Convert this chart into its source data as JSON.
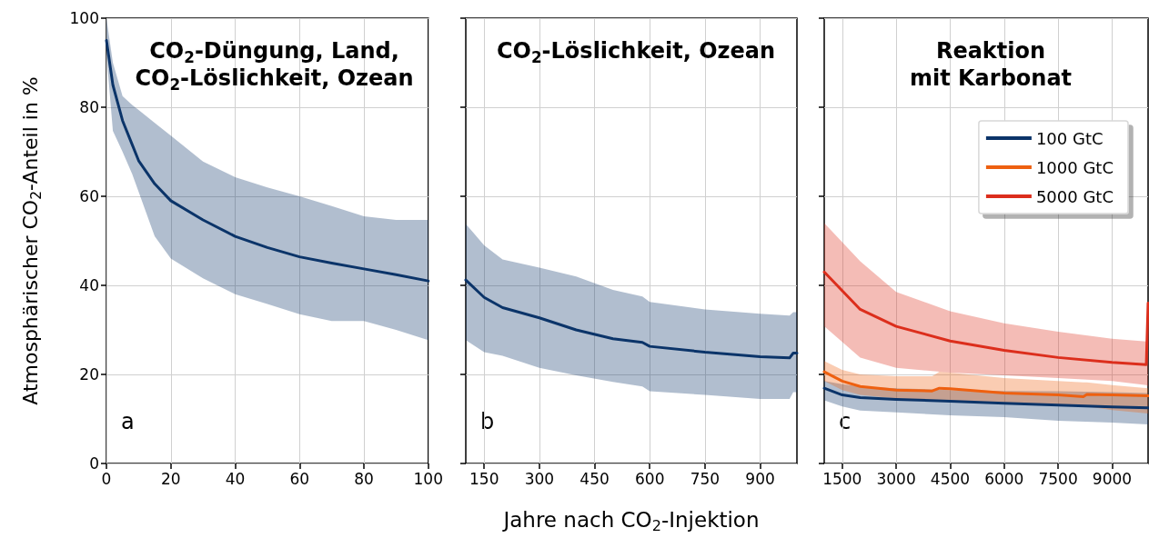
{
  "chart_data": [
    {
      "type": "line",
      "title": "CO$_{2}$-Düngung, Land,\nCO$_{2}$-Löslichkeit, Ozean",
      "ylabel": "Atmosphärischer CO$_{2}$-Anteil in %",
      "annotations": [
        "a"
      ],
      "xlim": [
        0,
        100
      ],
      "xticks": [
        0,
        20,
        40,
        60,
        80,
        100
      ],
      "ylim": [
        0,
        100
      ],
      "yticks": [
        0,
        20,
        40,
        60,
        80,
        100
      ],
      "grid": true,
      "series": [
        {
          "color": "#0b3469",
          "x": [
            0,
            2,
            5,
            8,
            10,
            15,
            20,
            30,
            40,
            50,
            60,
            70,
            80,
            90,
            100
          ],
          "values": [
            95,
            85,
            77,
            71.6,
            68,
            62.8,
            59,
            54.7,
            51,
            48.5,
            46.4,
            45,
            43.7,
            42.4,
            41
          ],
          "upper": [
            100,
            90,
            82.5,
            80.5,
            79.4,
            76.5,
            73.6,
            67.8,
            64.3,
            62,
            60,
            57.8,
            55.5,
            54.7,
            54.7
          ],
          "lower": [
            92,
            74.7,
            70,
            65,
            61,
            51,
            46,
            41.6,
            38,
            35.8,
            33.5,
            32,
            32,
            30,
            27.7
          ]
        }
      ]
    },
    {
      "type": "line",
      "title": "CO$_{2}$-Löslichkeit, Ozean",
      "xlabel": "Jahre nach CO$_{2}$-Injektion",
      "annotations": [
        "b"
      ],
      "xlim": [
        100,
        1000
      ],
      "xticks": [
        150,
        300,
        450,
        600,
        750,
        900
      ],
      "ylim": [
        0,
        100
      ],
      "yticks": [
        0,
        20,
        40,
        60,
        80,
        100
      ],
      "grid": true,
      "tick_labels": "x",
      "series": [
        {
          "color": "#0b3469",
          "x": [
            100,
            150,
            200,
            300,
            400,
            500,
            580,
            600,
            750,
            900,
            980,
            990,
            1000
          ],
          "values": [
            41.2,
            37.3,
            35,
            32.7,
            30,
            28,
            27.2,
            26.3,
            25,
            24,
            23.7,
            24.8,
            24.8
          ],
          "upper": [
            53.8,
            49,
            45.8,
            44,
            42,
            39,
            37.5,
            36.3,
            34.6,
            33.6,
            33.2,
            34,
            34
          ],
          "lower": [
            27.7,
            25,
            24.2,
            21.5,
            19.8,
            18.3,
            17.3,
            16.2,
            15.4,
            14.5,
            14.5,
            16,
            16
          ]
        }
      ]
    },
    {
      "type": "line",
      "title": "Reaktion\nmit Karbonat",
      "annotations": [
        "c"
      ],
      "xlim": [
        1000,
        10000
      ],
      "xticks": [
        1500,
        3000,
        4500,
        6000,
        7500,
        9000
      ],
      "ylim": [
        0,
        100
      ],
      "yticks": [
        0,
        20,
        40,
        60,
        80,
        100
      ],
      "grid": true,
      "tick_labels": "x",
      "legend": "top right",
      "series": [
        {
          "name": "100 GtC",
          "color": "#0b3469",
          "x": [
            1000,
            1500,
            2000,
            3000,
            4500,
            6000,
            7500,
            9000,
            10000
          ],
          "values": [
            16.9,
            15.4,
            14.8,
            14.4,
            14,
            13.5,
            13.1,
            12.7,
            12.5
          ],
          "upper": [
            18.5,
            17.8,
            17.3,
            16.9,
            16.5,
            16.3,
            16.2,
            16,
            15.8
          ],
          "lower": [
            14.2,
            12.8,
            11.9,
            11.5,
            10.8,
            10.4,
            9.6,
            9.2,
            8.8
          ]
        },
        {
          "name": "1000 GtC",
          "color": "#ee6010",
          "x": [
            1000,
            1500,
            2000,
            3000,
            4000,
            4200,
            4500,
            6000,
            7500,
            8200,
            8300,
            9000,
            10000
          ],
          "values": [
            20.6,
            18.5,
            17.3,
            16.5,
            16.3,
            16.9,
            16.8,
            15.8,
            15.4,
            15,
            15.5,
            15.4,
            15.2
          ],
          "upper": [
            23,
            21,
            20,
            19.6,
            19.6,
            20.6,
            20.4,
            19.2,
            18.5,
            18.2,
            18.2,
            17.6,
            16.9
          ],
          "lower": [
            18.5,
            16.5,
            15.4,
            14.6,
            14.2,
            14.2,
            14,
            13.5,
            13.1,
            12.8,
            12.8,
            12,
            11.2
          ]
        },
        {
          "name": "5000 GtC",
          "color": "#dc2e1c",
          "x": [
            1000,
            2000,
            3000,
            4500,
            6000,
            7500,
            9000,
            9950,
            10000
          ],
          "values": [
            43,
            34.6,
            30.8,
            27.5,
            25.4,
            23.8,
            22.7,
            22.2,
            36
          ],
          "upper": [
            54,
            45.4,
            38.5,
            34.2,
            31.5,
            29.6,
            28,
            27.4,
            27.3
          ],
          "lower": [
            30.8,
            23.8,
            21.5,
            20.4,
            19.8,
            19.2,
            18.5,
            17.6,
            17.3
          ]
        }
      ]
    }
  ]
}
